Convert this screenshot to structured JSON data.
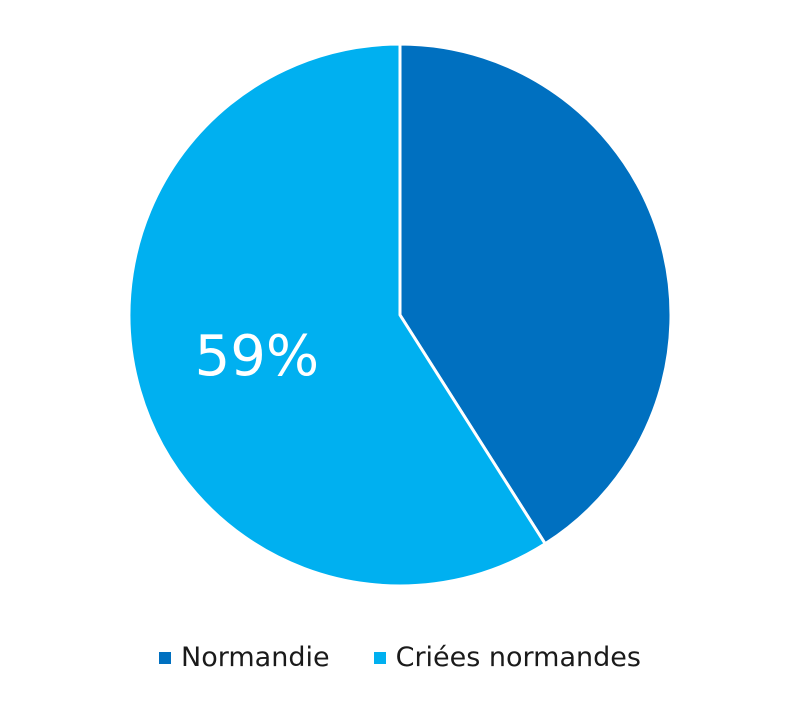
{
  "colors": {
    "background": "#ffffff",
    "separator": "#ffffff"
  },
  "chart_data": {
    "type": "pie",
    "title": "",
    "categories": [
      "Normandie",
      "Criées normandes"
    ],
    "values": [
      41,
      59
    ],
    "value_unit": "%",
    "colors": [
      "#0070C0",
      "#00B0F0"
    ],
    "start_angle_deg": 0,
    "direction": "clockwise",
    "data_labels": [
      {
        "category": "Criées normandes",
        "text": "59%"
      }
    ],
    "legend": {
      "position": "bottom",
      "entries": [
        "Normandie",
        "Criées normandes"
      ]
    }
  }
}
